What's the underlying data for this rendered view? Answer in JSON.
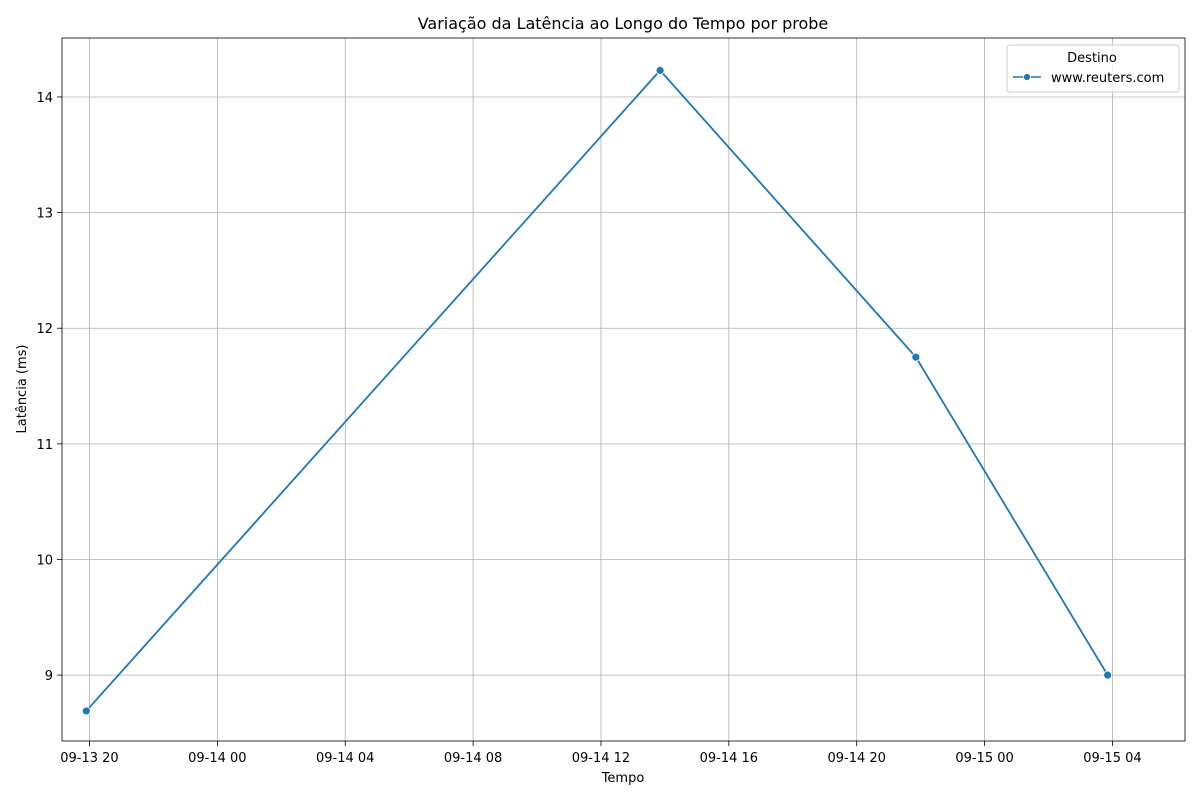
{
  "chart_data": {
    "type": "line",
    "title": "Variação da Latência ao Longo do Tempo por probe",
    "xlabel": "Tempo",
    "ylabel": "Latência (ms)",
    "grid": true,
    "legend": {
      "title": "Destino",
      "placement": "top-right"
    },
    "x_axis": {
      "unit": "hours since 09-13 20:00",
      "range": [
        -0.86,
        34.27
      ],
      "ticks": [
        {
          "value": 0,
          "label": "09-13 20"
        },
        {
          "value": 4,
          "label": "09-14 00"
        },
        {
          "value": 8,
          "label": "09-14 04"
        },
        {
          "value": 12,
          "label": "09-14 08"
        },
        {
          "value": 16,
          "label": "09-14 12"
        },
        {
          "value": 20,
          "label": "09-14 16"
        },
        {
          "value": 24,
          "label": "09-14 20"
        },
        {
          "value": 28,
          "label": "09-15 00"
        },
        {
          "value": 32,
          "label": "09-15 04"
        }
      ]
    },
    "y_axis": {
      "range": [
        8.43,
        14.51
      ],
      "ticks": [
        {
          "value": 9,
          "label": "9"
        },
        {
          "value": 10,
          "label": "10"
        },
        {
          "value": 11,
          "label": "11"
        },
        {
          "value": 12,
          "label": "12"
        },
        {
          "value": 13,
          "label": "13"
        },
        {
          "value": 14,
          "label": "14"
        }
      ]
    },
    "series": [
      {
        "name": "www.reuters.com",
        "color": "#1f77b4",
        "marker": "circle",
        "points": [
          {
            "x": -0.1,
            "y": 8.69
          },
          {
            "x": 17.85,
            "y": 14.23
          },
          {
            "x": 25.85,
            "y": 11.75
          },
          {
            "x": 31.85,
            "y": 9.0
          }
        ]
      }
    ]
  }
}
